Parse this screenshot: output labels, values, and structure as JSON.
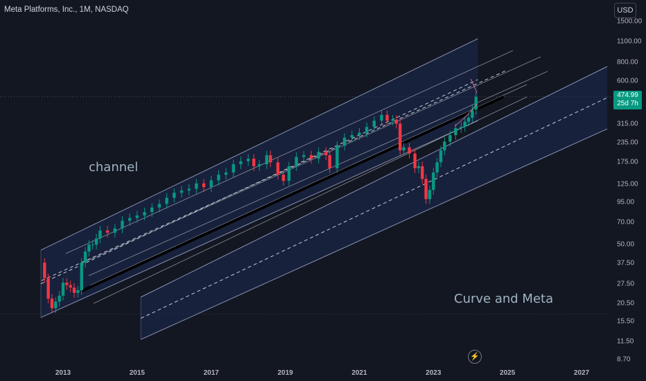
{
  "header": {
    "title": "Meta Platforms, Inc., 1M, NASDAQ",
    "currency_button": "USD"
  },
  "price_badge": {
    "price": "474.99",
    "countdown": "25d 7h"
  },
  "annotations": {
    "channel": "channel",
    "curve": "Curve and Meta"
  },
  "colors": {
    "background": "#131722",
    "up": "#089981",
    "down": "#f23645",
    "channel_fill": "#1e2a52",
    "channel_line": "#8a93b5",
    "fan_line": "#b2b5be"
  },
  "chart_data": {
    "type": "candlestick",
    "symbol": "Meta Platforms, Inc.",
    "interval": "1M",
    "exchange": "NASDAQ",
    "y_scale": "log",
    "y_ticks": [
      "1500.00",
      "1100.00",
      "800.00",
      "600.00",
      "474.99",
      "315.00",
      "235.00",
      "175.00",
      "125.00",
      "95.00",
      "70.00",
      "50.00",
      "37.50",
      "27.50",
      "20.50",
      "15.50",
      "11.50",
      "8.70"
    ],
    "x_ticks": [
      "2013",
      "2015",
      "2017",
      "2019",
      "2021",
      "2023",
      "2025",
      "2027"
    ],
    "xlim": [
      2012.2,
      2028.0
    ],
    "ylim": [
      8.0,
      1600.0
    ],
    "last_price": 474.99,
    "close_series": [
      [
        2012.4,
        38
      ],
      [
        2012.5,
        30
      ],
      [
        2012.6,
        22
      ],
      [
        2012.7,
        19
      ],
      [
        2012.8,
        21
      ],
      [
        2012.9,
        23
      ],
      [
        2013.0,
        28
      ],
      [
        2013.1,
        27
      ],
      [
        2013.2,
        26
      ],
      [
        2013.3,
        24
      ],
      [
        2013.4,
        25
      ],
      [
        2013.5,
        38
      ],
      [
        2013.6,
        45
      ],
      [
        2013.7,
        50
      ],
      [
        2013.8,
        50
      ],
      [
        2013.9,
        55
      ],
      [
        2014.0,
        62
      ],
      [
        2014.2,
        60
      ],
      [
        2014.4,
        64
      ],
      [
        2014.6,
        72
      ],
      [
        2014.8,
        75
      ],
      [
        2015.0,
        78
      ],
      [
        2015.2,
        82
      ],
      [
        2015.4,
        88
      ],
      [
        2015.6,
        93
      ],
      [
        2015.8,
        102
      ],
      [
        2016.0,
        110
      ],
      [
        2016.2,
        114
      ],
      [
        2016.4,
        117
      ],
      [
        2016.6,
        127
      ],
      [
        2016.8,
        120
      ],
      [
        2017.0,
        133
      ],
      [
        2017.2,
        145
      ],
      [
        2017.4,
        150
      ],
      [
        2017.6,
        170
      ],
      [
        2017.8,
        178
      ],
      [
        2018.0,
        185
      ],
      [
        2018.15,
        165
      ],
      [
        2018.3,
        170
      ],
      [
        2018.5,
        195
      ],
      [
        2018.6,
        175
      ],
      [
        2018.8,
        145
      ],
      [
        2018.95,
        132
      ],
      [
        2019.1,
        165
      ],
      [
        2019.3,
        190
      ],
      [
        2019.5,
        195
      ],
      [
        2019.7,
        185
      ],
      [
        2019.9,
        205
      ],
      [
        2020.1,
        195
      ],
      [
        2020.2,
        160
      ],
      [
        2020.4,
        225
      ],
      [
        2020.6,
        255
      ],
      [
        2020.8,
        265
      ],
      [
        2021.0,
        275
      ],
      [
        2021.2,
        300
      ],
      [
        2021.4,
        330
      ],
      [
        2021.6,
        360
      ],
      [
        2021.75,
        330
      ],
      [
        2021.9,
        335
      ],
      [
        2022.0,
        315
      ],
      [
        2022.1,
        210
      ],
      [
        2022.2,
        220
      ],
      [
        2022.35,
        200
      ],
      [
        2022.5,
        160
      ],
      [
        2022.6,
        165
      ],
      [
        2022.7,
        136
      ],
      [
        2022.8,
        100
      ],
      [
        2022.9,
        115
      ],
      [
        2023.0,
        150
      ],
      [
        2023.1,
        175
      ],
      [
        2023.2,
        210
      ],
      [
        2023.3,
        240
      ],
      [
        2023.45,
        265
      ],
      [
        2023.6,
        295
      ],
      [
        2023.75,
        300
      ],
      [
        2023.85,
        325
      ],
      [
        2023.95,
        345
      ],
      [
        2024.05,
        390
      ],
      [
        2024.15,
        474.99
      ]
    ],
    "drawings": [
      {
        "type": "parallel_channel",
        "label": "channel",
        "x": [
          2012.4,
          2024.2
        ],
        "lower": [
          16.5,
          330
        ],
        "upper": [
          46,
          1150
        ]
      },
      {
        "type": "parallel_channel",
        "label": "Curve and Meta",
        "x": [
          2015.1,
          2028.0
        ],
        "lower": [
          11.8,
          315
        ],
        "upper": [
          22.5,
          820
        ],
        "midline_dashed": true
      }
    ]
  }
}
